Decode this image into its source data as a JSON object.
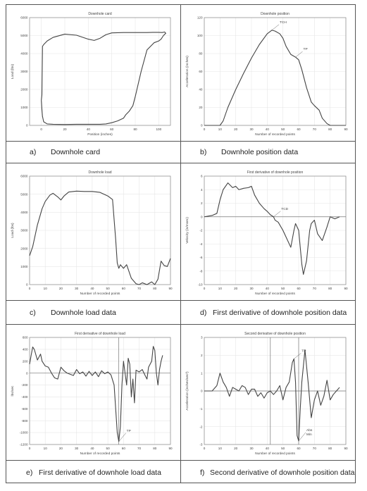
{
  "captions": [
    {
      "letter": "a)",
      "text": "Downhole card"
    },
    {
      "letter": "b)",
      "text": "Downhole position data"
    },
    {
      "letter": "c)",
      "text": "Downhole load data"
    },
    {
      "letter": "d)",
      "text": "First derivative of downhole position data"
    },
    {
      "letter": "e)",
      "text": "First derivative of downhole load data"
    },
    {
      "letter": "f)",
      "text": "Second derivative of downhole position data"
    }
  ],
  "colors": {
    "line": "#444444",
    "grid": "#e6e6e6",
    "axis": "#888888",
    "border": "#555555"
  },
  "chart_data": [
    {
      "type": "line",
      "title": "Downhole card",
      "xlabel": "Position (inches)",
      "ylabel": "Load (lbs)",
      "xlim": [
        -10,
        110
      ],
      "ylim": [
        0,
        6000
      ],
      "xticks": [
        0,
        20,
        40,
        60,
        80,
        100
      ],
      "yticks": [
        0,
        1000,
        2000,
        3000,
        4000,
        5000,
        6000
      ],
      "grid": true,
      "series": [
        {
          "x": [
            0,
            0.5,
            1,
            2,
            5,
            10,
            20,
            30,
            40,
            45,
            50,
            55,
            60,
            70,
            80,
            90,
            95,
            100,
            103,
            105,
            106,
            104,
            102,
            100,
            96,
            90,
            85,
            80,
            78,
            75,
            72,
            70,
            65,
            60,
            55,
            50,
            45,
            40,
            30,
            20,
            10,
            5,
            2,
            1,
            0.5,
            0
          ],
          "y": [
            1400,
            1700,
            4400,
            4500,
            4700,
            4900,
            5080,
            5020,
            4800,
            4730,
            4850,
            5050,
            5150,
            5170,
            5170,
            5170,
            5180,
            5180,
            5170,
            5200,
            5130,
            5000,
            4800,
            4700,
            4600,
            4200,
            3000,
            1600,
            1100,
            800,
            600,
            400,
            250,
            150,
            80,
            60,
            60,
            60,
            60,
            50,
            60,
            80,
            200,
            500,
            900,
            1400
          ]
        }
      ],
      "annotations": []
    },
    {
      "type": "line",
      "title": "Downhole position",
      "xlabel": "Number of recorded points",
      "ylabel": "Acceleration (inches)",
      "xlim": [
        0,
        90
      ],
      "ylim": [
        0,
        120
      ],
      "xticks": [
        0,
        10,
        20,
        30,
        40,
        50,
        60,
        70,
        80,
        90
      ],
      "yticks": [
        0,
        20,
        40,
        60,
        80,
        100,
        120
      ],
      "grid": true,
      "series": [
        {
          "x": [
            0,
            5,
            10,
            12,
            15,
            20,
            25,
            30,
            35,
            40,
            43,
            45,
            48,
            50,
            52,
            55,
            58,
            60,
            62,
            65,
            68,
            70,
            73,
            75,
            78,
            80,
            85,
            88,
            90
          ],
          "y": [
            0,
            0,
            0,
            5,
            20,
            40,
            58,
            75,
            90,
            102,
            106,
            105,
            102,
            97,
            88,
            79,
            76,
            73,
            62,
            42,
            26,
            22,
            17,
            8,
            2,
            0,
            0,
            0,
            0
          ]
        }
      ],
      "annotations": [
        {
          "text": "TCH",
          "x": 43,
          "y": 106
        },
        {
          "text": "TP",
          "x": 58,
          "y": 76
        }
      ]
    },
    {
      "type": "line",
      "title": "Downhole load",
      "xlabel": "Number of recorded points",
      "ylabel": "Load (lbs)",
      "xlim": [
        0,
        90
      ],
      "ylim": [
        0,
        6000
      ],
      "xticks": [
        0,
        10,
        20,
        30,
        40,
        50,
        60,
        70,
        80,
        90
      ],
      "yticks": [
        0,
        1000,
        2000,
        3000,
        4000,
        5000,
        6000
      ],
      "grid": true,
      "series": [
        {
          "x": [
            0,
            2,
            5,
            8,
            10,
            13,
            15,
            18,
            20,
            22,
            25,
            28,
            30,
            35,
            40,
            45,
            50,
            53,
            55,
            56,
            57,
            58,
            60,
            62,
            65,
            68,
            70,
            72,
            75,
            78,
            80,
            82,
            84,
            86,
            88,
            90
          ],
          "y": [
            1600,
            2100,
            3300,
            4200,
            4600,
            4950,
            5050,
            4850,
            4680,
            4900,
            5120,
            5150,
            5170,
            5150,
            5150,
            5100,
            4900,
            4700,
            2500,
            1200,
            900,
            1100,
            900,
            1100,
            350,
            50,
            0,
            100,
            0,
            150,
            0,
            300,
            1300,
            1050,
            1000,
            1450
          ]
        }
      ],
      "annotations": []
    },
    {
      "type": "line",
      "title": "First derivative of downhole position",
      "xlabel": "Number of recorded points",
      "ylabel": "Velocity (in/msec)",
      "xlim": [
        0,
        90
      ],
      "ylim": [
        -10,
        6
      ],
      "xticks": [
        0,
        10,
        20,
        30,
        40,
        50,
        60,
        70,
        80,
        90
      ],
      "yticks": [
        -10,
        -8,
        -6,
        -4,
        -2,
        0,
        2,
        4,
        6
      ],
      "grid": true,
      "hlines": [
        0
      ],
      "series": [
        {
          "x": [
            0,
            5,
            8,
            10,
            12,
            15,
            18,
            20,
            22,
            25,
            28,
            30,
            32,
            35,
            38,
            40,
            42,
            44,
            45,
            47,
            50,
            52,
            55,
            57,
            58,
            60,
            62,
            63,
            65,
            67,
            68,
            70,
            72,
            75,
            78,
            80,
            83,
            86
          ],
          "y": [
            0,
            0.2,
            0.5,
            2.5,
            4.0,
            5.0,
            4.3,
            4.5,
            4.0,
            4.2,
            4.3,
            4.5,
            3.2,
            2.0,
            1.2,
            0.8,
            0.3,
            0,
            -0.5,
            -0.8,
            -2,
            -3,
            -4.5,
            -2,
            -1,
            -2,
            -7,
            -8.5,
            -6.5,
            -2,
            -1,
            -0.5,
            -2.5,
            -3.5,
            -1.5,
            0,
            -0.3,
            0
          ]
        }
      ],
      "annotations": [
        {
          "text": "TCD",
          "x": 44,
          "y": 0
        }
      ]
    },
    {
      "type": "line",
      "title": "First derivative of downhole load",
      "xlabel": "Number of recorded points",
      "ylabel": "lbs/sec",
      "xlim": [
        0,
        90
      ],
      "ylim": [
        -1200,
        600
      ],
      "xticks": [
        0,
        10,
        20,
        30,
        40,
        50,
        60,
        70,
        80,
        90
      ],
      "yticks": [
        -1200,
        -1000,
        -800,
        -600,
        -400,
        -200,
        0,
        200,
        400,
        600
      ],
      "grid": true,
      "hlines": [
        0
      ],
      "vlines": [
        57
      ],
      "series": [
        {
          "x": [
            0,
            1,
            2,
            3,
            5,
            7,
            8,
            10,
            12,
            14,
            16,
            18,
            20,
            22,
            24,
            26,
            28,
            30,
            32,
            34,
            36,
            38,
            40,
            42,
            44,
            46,
            48,
            50,
            52,
            54,
            55,
            56,
            57,
            58,
            59,
            60,
            62,
            63,
            64,
            65,
            66,
            67,
            68,
            70,
            72,
            74,
            75,
            76,
            78,
            79,
            80,
            81,
            82,
            83,
            84,
            85
          ],
          "y": [
            150,
            300,
            440,
            400,
            220,
            320,
            200,
            120,
            100,
            0,
            -80,
            -100,
            100,
            40,
            0,
            -20,
            -40,
            60,
            -10,
            20,
            -50,
            30,
            -40,
            20,
            -60,
            40,
            -10,
            20,
            -30,
            -200,
            -600,
            -1000,
            -1150,
            -900,
            -200,
            200,
            -200,
            250,
            150,
            -400,
            -100,
            -500,
            50,
            20,
            60,
            -50,
            -100,
            100,
            200,
            450,
            380,
            0,
            -200,
            60,
            200,
            300
          ]
        }
      ],
      "annotations": [
        {
          "text": "TP",
          "x": 57,
          "y": -1150
        }
      ]
    },
    {
      "type": "line",
      "title": "Second derivative of downhole position",
      "xlabel": "Number of recorded points",
      "ylabel": "Acceleration (inches/sec²)",
      "xlim": [
        0,
        90
      ],
      "ylim": [
        -3,
        3
      ],
      "xticks": [
        0,
        10,
        20,
        30,
        40,
        50,
        60,
        70,
        80,
        90
      ],
      "yticks": [
        -3,
        -2,
        -1,
        0,
        1,
        2,
        3
      ],
      "grid": true,
      "hlines": [
        0
      ],
      "vlines": [
        42,
        60
      ],
      "series": [
        {
          "x": [
            0,
            5,
            8,
            10,
            12,
            14,
            16,
            18,
            20,
            22,
            24,
            26,
            28,
            30,
            32,
            34,
            36,
            38,
            40,
            42,
            44,
            46,
            48,
            50,
            52,
            54,
            56,
            57,
            58,
            59,
            60,
            61,
            62,
            64,
            66,
            68,
            70,
            72,
            74,
            76,
            78,
            80,
            82,
            84,
            86
          ],
          "y": [
            0,
            0,
            0.3,
            1.0,
            0.5,
            0.2,
            -0.3,
            0.2,
            0.1,
            0.0,
            0.3,
            0.2,
            -0.2,
            0.1,
            0.1,
            -0.3,
            -0.1,
            -0.4,
            -0.1,
            0.0,
            -0.2,
            0.0,
            0.3,
            -0.5,
            0.2,
            0.5,
            1.6,
            1.8,
            0.5,
            -2.5,
            -2.8,
            -1.0,
            0.5,
            2.3,
            0.5,
            -1.5,
            -0.5,
            0.0,
            -0.8,
            -0.3,
            0.6,
            -0.5,
            -0.2,
            0.0,
            0.2
          ]
        }
      ],
      "annotations": [
        {
          "text": "TP",
          "x": 57,
          "y": 1.8
        },
        {
          "text": "Abs",
          "x": 60,
          "y": -2.8
        },
        {
          "text": "Min",
          "x": 60,
          "y": -2.8
        }
      ]
    }
  ]
}
